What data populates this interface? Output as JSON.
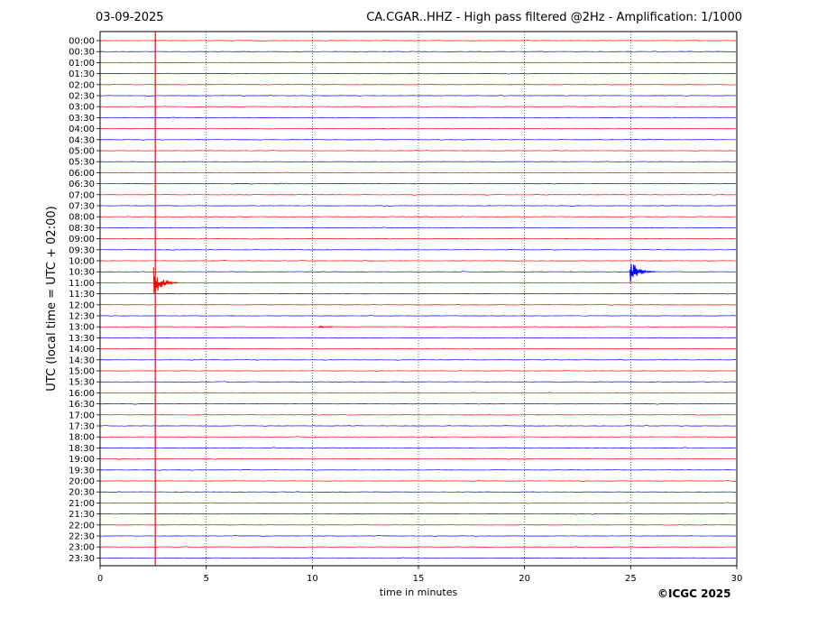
{
  "header": {
    "date": "03-09-2025",
    "title": "CA.CGAR..HHZ - High pass filtered @2Hz - Amplification: 1/1000"
  },
  "footer": {
    "copyright": "©ICGC 2025"
  },
  "chart_data": {
    "type": "line",
    "xlabel": "time in minutes",
    "ylabel": "UTC (local time = UTC + 02:00)",
    "xlim": [
      0,
      30
    ],
    "xticks": [
      0,
      5,
      10,
      15,
      20,
      25,
      30
    ],
    "grid": "vertical dotted lines every 5 minutes",
    "row_labels": [
      "00:00",
      "00:30",
      "01:00",
      "01:30",
      "02:00",
      "02:30",
      "03:00",
      "03:30",
      "04:00",
      "04:30",
      "05:00",
      "05:30",
      "06:00",
      "06:30",
      "07:00",
      "07:30",
      "08:00",
      "08:30",
      "09:00",
      "09:30",
      "10:00",
      "10:30",
      "11:00",
      "11:30",
      "12:00",
      "12:30",
      "13:00",
      "13:30",
      "14:00",
      "14:30",
      "15:00",
      "15:30",
      "16:00",
      "16:30",
      "17:00",
      "17:30",
      "18:00",
      "18:30",
      "19:00",
      "19:30",
      "20:00",
      "20:30",
      "21:00",
      "21:30",
      "22:00",
      "22:30",
      "23:00",
      "23:30"
    ],
    "trace_colors": [
      "#ff0000",
      "#0000ff"
    ],
    "events": [
      {
        "row": "11:00",
        "minute": 2.6,
        "amplitude": "large"
      },
      {
        "row": "10:30",
        "minute": 25.05,
        "amplitude": "medium"
      },
      {
        "row": "13:00",
        "minute": 10.4,
        "amplitude": "small"
      }
    ],
    "saturated_line_minute": 2.6
  }
}
